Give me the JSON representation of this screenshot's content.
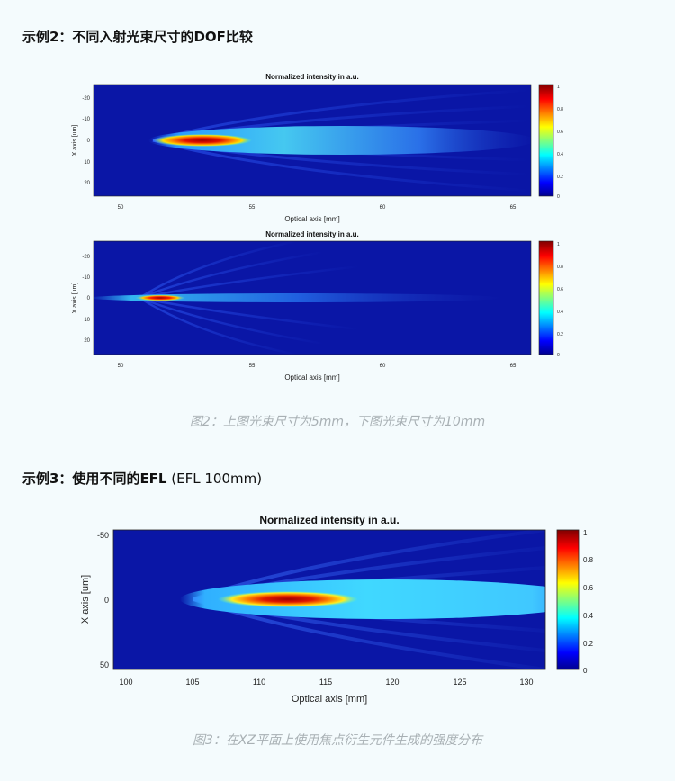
{
  "section1": {
    "title_bold": "示例2：不同入射光束尺寸的DOF比较"
  },
  "figure1": {
    "caption": "图2：上图光束尺寸为5mm，下图光束尺寸为10mm",
    "panels": [
      {
        "title": "Normalized intensity in a.u.",
        "xlabel": "Optical axis [mm]",
        "ylabel": "X axis [um]",
        "xticks": [
          "50",
          "55",
          "60",
          "65"
        ],
        "yticks": [
          "-20",
          "-10",
          "0",
          "10",
          "20"
        ],
        "colorbar_ticks": [
          "1",
          "0.8",
          "0.6",
          "0.4",
          "0.2",
          "0"
        ]
      },
      {
        "title": "Normalized intensity in a.u.",
        "xlabel": "Optical axis [mm]",
        "ylabel": "X axis [um]",
        "xticks": [
          "50",
          "55",
          "60",
          "65"
        ],
        "yticks": [
          "-20",
          "-10",
          "0",
          "10",
          "20"
        ],
        "colorbar_ticks": [
          "1",
          "0.8",
          "0.6",
          "0.4",
          "0.2",
          "0"
        ]
      }
    ]
  },
  "section2": {
    "title_bold": "示例3：使用不同的EFL",
    "title_plain": " (EFL 100mm)"
  },
  "figure2": {
    "caption": "图3：在XZ平面上使用焦点衍生元件生成的强度分布",
    "title": "Normalized intensity in a.u.",
    "xlabel": "Optical axis [mm]",
    "ylabel": "X axis [um]",
    "xticks": [
      "100",
      "105",
      "110",
      "115",
      "120",
      "125",
      "130"
    ],
    "yticks": [
      "-50",
      "0",
      "50"
    ],
    "colorbar_ticks": [
      "1",
      "0.8",
      "0.6",
      "0.4",
      "0.2",
      "0"
    ]
  },
  "colors": {
    "background": "#f4fbfd",
    "plot_background": "#0a16a6",
    "caption": "#a8b0b4"
  }
}
